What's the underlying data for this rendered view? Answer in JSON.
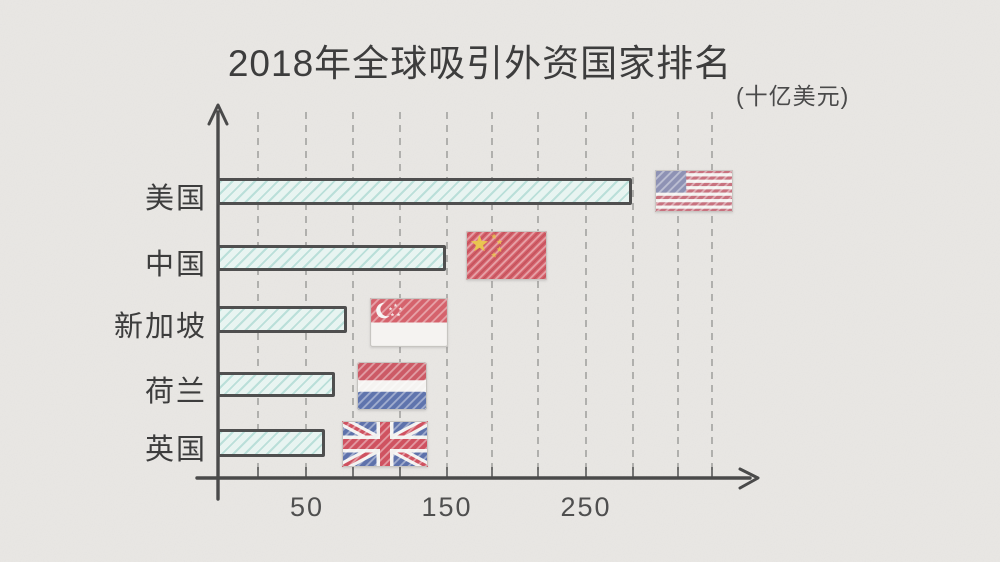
{
  "title": "2018年全球吸引外资国家排名",
  "unit_label": "(十亿美元)",
  "chart_data": {
    "type": "bar",
    "orientation": "horizontal",
    "title": "2018年全球吸引外资国家排名",
    "unit": "十亿美元",
    "categories": [
      "美国",
      "中国",
      "新加坡",
      "荷兰",
      "英国"
    ],
    "values": [
      283,
      150,
      79,
      70,
      63
    ],
    "x_ticks": [
      "50",
      "150",
      "250"
    ],
    "x_tick_values": [
      50,
      150,
      250
    ],
    "xlim": [
      0,
      330
    ],
    "grid": "vertical-dashed",
    "legend": "none",
    "style": "hand-drawn sketch on paper",
    "bar_markers": [
      "usa-flag",
      "china-flag",
      "singapore-flag",
      "netherlands-flag",
      "uk-flag"
    ]
  },
  "rows": [
    {
      "label": "美国",
      "value": 283,
      "flag": "us",
      "flag_icon": "usa-flag-icon"
    },
    {
      "label": "中国",
      "value": 150,
      "flag": "cn",
      "flag_icon": "china-flag-icon"
    },
    {
      "label": "新加坡",
      "value": 79,
      "flag": "sg",
      "flag_icon": "singapore-flag-icon"
    },
    {
      "label": "荷兰",
      "value": 70,
      "flag": "nl",
      "flag_icon": "netherlands-flag-icon"
    },
    {
      "label": "英国",
      "value": 63,
      "flag": "gb",
      "flag_icon": "uk-flag-icon"
    }
  ],
  "colors": {
    "paper": "#e9e7e4",
    "bar_fill": "#e8f4f1",
    "bar_hatch": "#94cec5",
    "bar_outline": "#4f4f4f",
    "axis": "#4a4a4a",
    "gridline": "#a3a2a0",
    "text": "#3d3d3d",
    "flag_red": "#d5626c",
    "flag_blue": "#5f74ad",
    "flag_yellow": "#eac94e"
  }
}
